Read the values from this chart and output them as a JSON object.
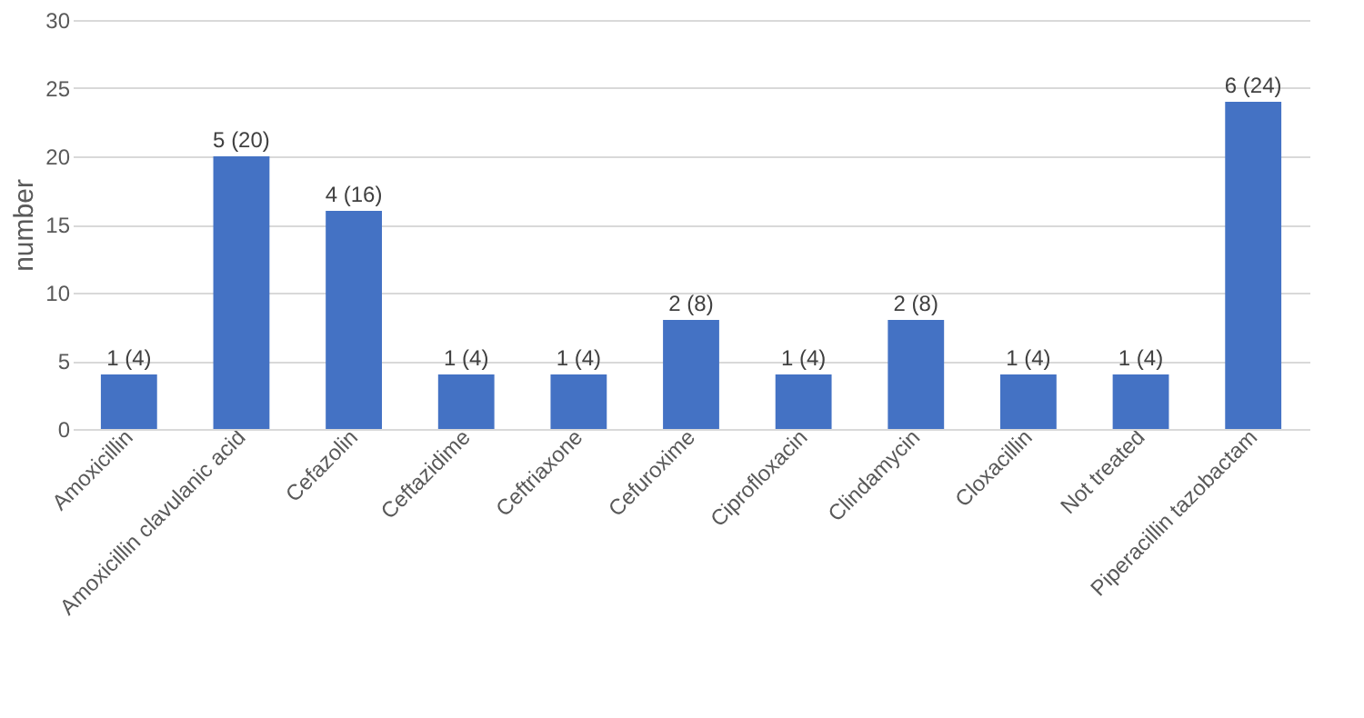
{
  "chart_data": {
    "type": "bar",
    "ylabel": "number",
    "categories": [
      "Amoxicillin",
      "Amoxicillin clavulanic acid",
      "Cefazolin",
      "Ceftazidime",
      "Ceftriaxone",
      "Cefuroxime",
      "Ciprofloxacin",
      "Clindamycin",
      "Cloxacillin",
      "Not treated",
      "Piperacillin tazobactam"
    ],
    "values": [
      4,
      20,
      16,
      4,
      4,
      8,
      4,
      8,
      4,
      4,
      24
    ],
    "value_labels": [
      "1 (4)",
      "5 (20)",
      "4 (16)",
      "1 (4)",
      "1 (4)",
      "2 (8)",
      "1 (4)",
      "2 (8)",
      "1 (4)",
      "1 (4)",
      "6 (24)"
    ],
    "color": "#4472c4",
    "ylim": [
      0,
      30
    ],
    "yticks": [
      0,
      5,
      10,
      15,
      20,
      25,
      30
    ],
    "grid": "y"
  }
}
